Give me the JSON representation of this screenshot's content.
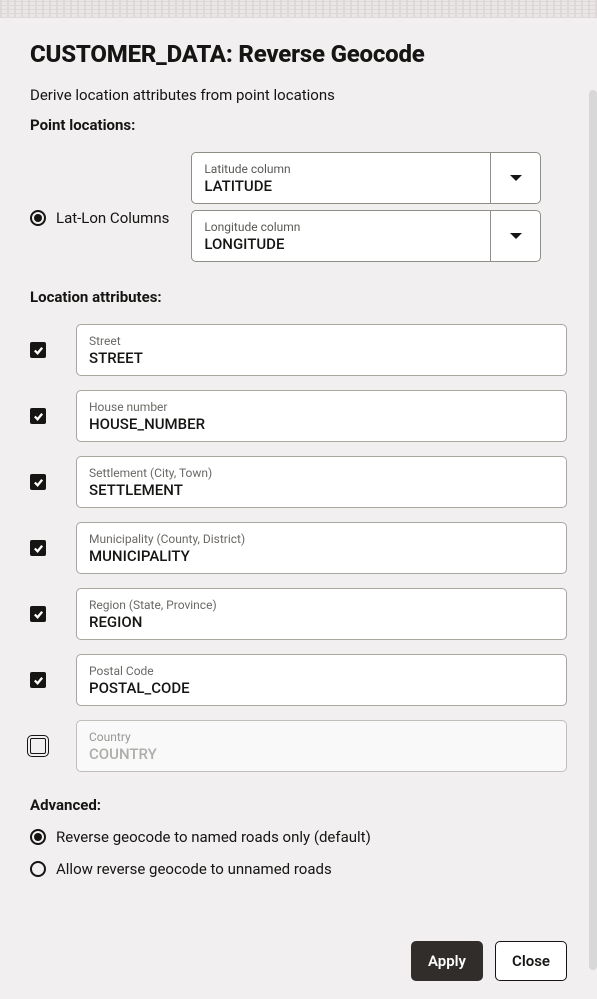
{
  "title": "CUSTOMER_DATA: Reverse Geocode",
  "subtitle": "Derive location attributes from point locations",
  "point_locations_label": "Point locations:",
  "latlon_label": "Lat-Lon Columns",
  "latitude": {
    "label": "Latitude column",
    "value": "LATITUDE"
  },
  "longitude": {
    "label": "Longitude column",
    "value": "LONGITUDE"
  },
  "location_attrs_label": "Location attributes:",
  "attrs": [
    {
      "checked": true,
      "label": "Street",
      "value": "STREET"
    },
    {
      "checked": true,
      "label": "House number",
      "value": "HOUSE_NUMBER"
    },
    {
      "checked": true,
      "label": "Settlement (City, Town)",
      "value": "SETTLEMENT"
    },
    {
      "checked": true,
      "label": "Municipality (County, District)",
      "value": "MUNICIPALITY"
    },
    {
      "checked": true,
      "label": "Region (State, Province)",
      "value": "REGION"
    },
    {
      "checked": true,
      "label": "Postal Code",
      "value": "POSTAL_CODE"
    },
    {
      "checked": false,
      "label": "Country",
      "value": "COUNTRY"
    }
  ],
  "advanced_label": "Advanced:",
  "adv_opts": [
    {
      "selected": true,
      "label": "Reverse geocode to named roads only (default)"
    },
    {
      "selected": false,
      "label": "Allow reverse geocode to unnamed roads"
    }
  ],
  "buttons": {
    "apply": "Apply",
    "close": "Close"
  }
}
